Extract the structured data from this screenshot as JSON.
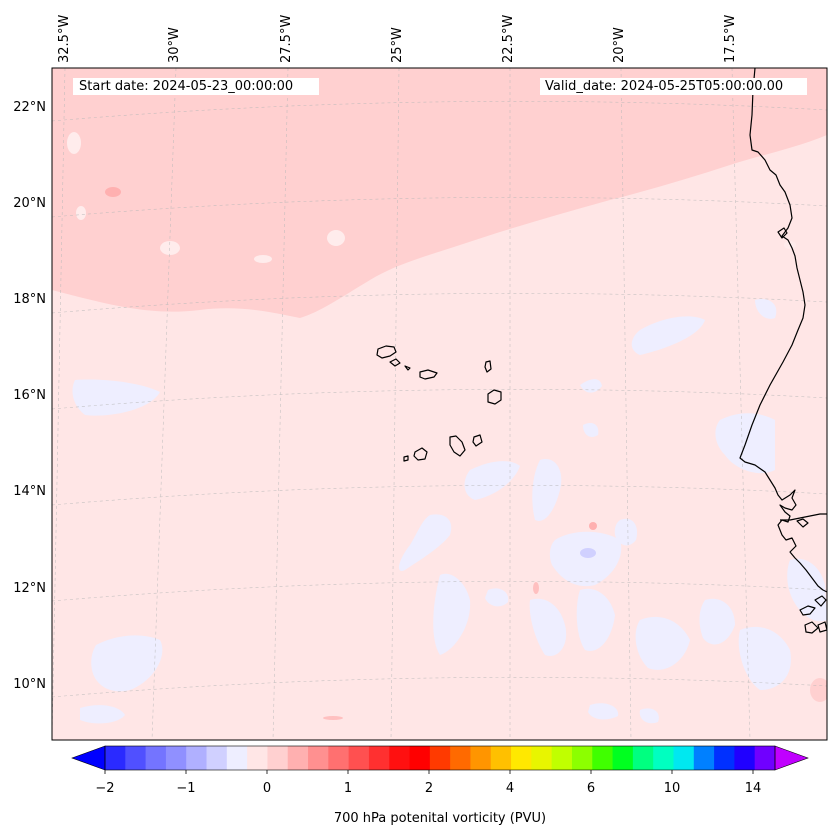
{
  "info": {
    "start_date": "Start date: 2024-05-23_00:00:00",
    "valid_date": "Valid_date: 2024-05-25T05:00:00.00"
  },
  "longitude_labels": [
    "32.5°W",
    "30°W",
    "27.5°W",
    "25°W",
    "22.5°W",
    "20°W",
    "17.5°W"
  ],
  "latitude_labels": [
    "22°N",
    "20°N",
    "18°N",
    "16°N",
    "14°N",
    "12°N",
    "10°N"
  ],
  "colorbar": {
    "label": "700 hPa potenital vorticity (PVU)",
    "tick_labels": [
      "−2",
      "−1",
      "0",
      "1",
      "2",
      "4",
      "6",
      "10",
      "14"
    ],
    "colors": [
      "#0000ff",
      "#2a2aff",
      "#5050ff",
      "#7474ff",
      "#9090ff",
      "#b0b0ff",
      "#d0d0ff",
      "#eeeeff",
      "#ffe6e6",
      "#ffd0d0",
      "#ffb0b0",
      "#ff9090",
      "#ff7070",
      "#ff5050",
      "#ff3030",
      "#ff1010",
      "#ff0000",
      "#ff3a00",
      "#ff6a00",
      "#ff9500",
      "#ffc000",
      "#ffe800",
      "#e8f500",
      "#c0ff00",
      "#8cff00",
      "#40ff00",
      "#00ff20",
      "#00ff80",
      "#00ffc0",
      "#00e8f0",
      "#0080ff",
      "#0030ff",
      "#2000ff",
      "#7000ff",
      "#c000ff"
    ]
  },
  "colors": {
    "background_pv": "#ffe6e6",
    "high_pv_band": "#ffd0d0",
    "negative_pv": "#eeeeff",
    "coastline": "#000000"
  }
}
